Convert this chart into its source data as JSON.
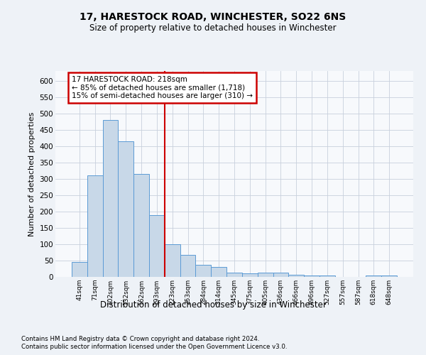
{
  "title1": "17, HARESTOCK ROAD, WINCHESTER, SO22 6NS",
  "title2": "Size of property relative to detached houses in Winchester",
  "xlabel": "Distribution of detached houses by size in Winchester",
  "ylabel": "Number of detached properties",
  "footer1": "Contains HM Land Registry data © Crown copyright and database right 2024.",
  "footer2": "Contains public sector information licensed under the Open Government Licence v3.0.",
  "annotation_title": "17 HARESTOCK ROAD: 218sqm",
  "annotation_line1": "← 85% of detached houses are smaller (1,718)",
  "annotation_line2": "15% of semi-detached houses are larger (310) →",
  "bar_color": "#c8d8e8",
  "bar_edge_color": "#5b9bd5",
  "vline_color": "#cc0000",
  "annotation_box_color": "#cc0000",
  "grid_color": "#c8d0dc",
  "categories": [
    "41sqm",
    "71sqm",
    "102sqm",
    "132sqm",
    "162sqm",
    "193sqm",
    "223sqm",
    "253sqm",
    "284sqm",
    "314sqm",
    "345sqm",
    "375sqm",
    "405sqm",
    "436sqm",
    "466sqm",
    "496sqm",
    "527sqm",
    "557sqm",
    "587sqm",
    "618sqm",
    "648sqm"
  ],
  "values": [
    45,
    310,
    480,
    415,
    315,
    190,
    100,
    68,
    37,
    30,
    13,
    10,
    13,
    12,
    6,
    4,
    4,
    1,
    1,
    5,
    4
  ],
  "vline_position": 5.5,
  "ylim": [
    0,
    630
  ],
  "yticks": [
    0,
    50,
    100,
    150,
    200,
    250,
    300,
    350,
    400,
    450,
    500,
    550,
    600
  ],
  "bg_color": "#eef2f7",
  "plot_bg_color": "#f7f9fc"
}
